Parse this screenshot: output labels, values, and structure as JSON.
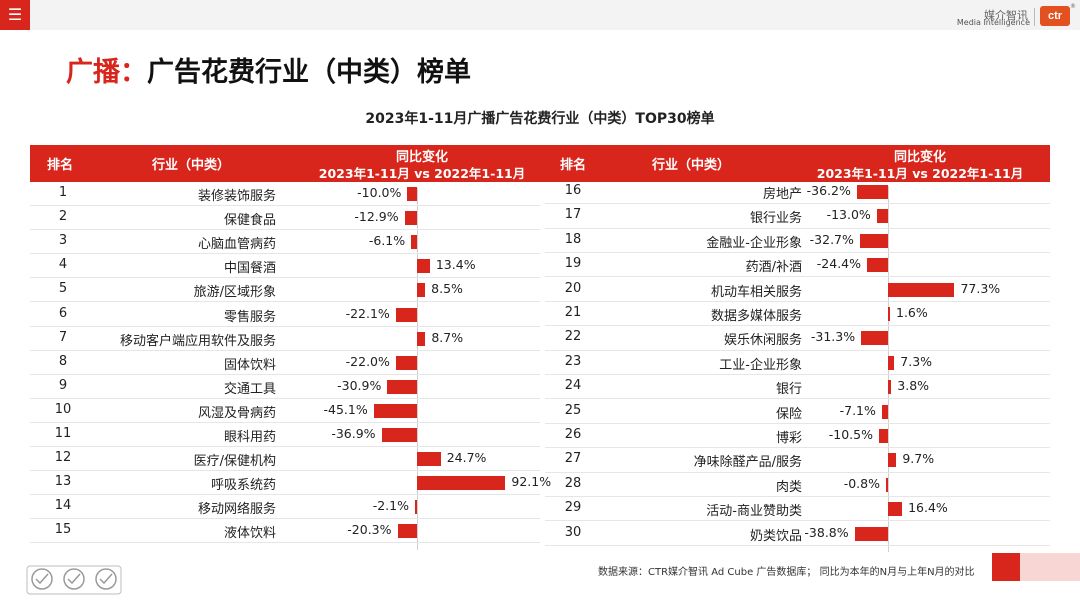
{
  "header": {
    "menu_icon": "menu-icon",
    "logo_cn": "媒介智讯",
    "logo_en": "Media Intelligence",
    "logo_mark": "ctr",
    "logo_reg": "®"
  },
  "slide_title": {
    "prefix": "广播：",
    "main": "广告花费行业（中类）榜单"
  },
  "source_note": "数据来源：CTR媒介智讯 Ad Cube 广告数据库；  同比为本年的N月与上年N月的对比",
  "colors": {
    "accent": "#d9261c",
    "footer_pink": "#f7d6d4"
  },
  "chart_data": {
    "type": "bar",
    "orientation": "horizontal",
    "title": "2023年1-11月广播广告花费行业（中类）TOP30榜单",
    "columns": {
      "rank": "排名",
      "industry": "行业（中类）",
      "change_title": "同比变化",
      "change_sub": "2023年1-11月 vs 2022年1-11月"
    },
    "unit": "%",
    "rows": [
      {
        "rank": "1",
        "industry": "装修装饰服务",
        "value": -10.0,
        "label": "-10.0%"
      },
      {
        "rank": "2",
        "industry": "保健食品",
        "value": -12.9,
        "label": "-12.9%"
      },
      {
        "rank": "3",
        "industry": "心脑血管病药",
        "value": -6.1,
        "label": "-6.1%"
      },
      {
        "rank": "4",
        "industry": "中国餐酒",
        "value": 13.4,
        "label": "13.4%"
      },
      {
        "rank": "5",
        "industry": "旅游/区域形象",
        "value": 8.5,
        "label": "8.5%"
      },
      {
        "rank": "6",
        "industry": "零售服务",
        "value": -22.1,
        "label": "-22.1%"
      },
      {
        "rank": "7",
        "industry": "移动客户端应用软件及服务",
        "value": 8.7,
        "label": "8.7%"
      },
      {
        "rank": "8",
        "industry": "固体饮料",
        "value": -22.0,
        "label": "-22.0%"
      },
      {
        "rank": "9",
        "industry": "交通工具",
        "value": -30.9,
        "label": "-30.9%"
      },
      {
        "rank": "10",
        "industry": "风湿及骨病药",
        "value": -45.1,
        "label": "-45.1%"
      },
      {
        "rank": "11",
        "industry": "眼科用药",
        "value": -36.9,
        "label": "-36.9%"
      },
      {
        "rank": "12",
        "industry": "医疗/保健机构",
        "value": 24.7,
        "label": "24.7%"
      },
      {
        "rank": "13",
        "industry": "呼吸系统药",
        "value": 92.1,
        "label": "92.1%"
      },
      {
        "rank": "14",
        "industry": "移动网络服务",
        "value": -2.1,
        "label": "-2.1%"
      },
      {
        "rank": "15",
        "industry": "液体饮料",
        "value": -20.3,
        "label": "-20.3%"
      },
      {
        "rank": "16",
        "industry": "房地产",
        "value": -36.2,
        "label": "-36.2%"
      },
      {
        "rank": "17",
        "industry": "银行业务",
        "value": -13.0,
        "label": "-13.0%"
      },
      {
        "rank": "18",
        "industry": "金融业-企业形象",
        "value": -32.7,
        "label": "-32.7%"
      },
      {
        "rank": "19",
        "industry": "药酒/补酒",
        "value": -24.4,
        "label": "-24.4%"
      },
      {
        "rank": "20",
        "industry": "机动车相关服务",
        "value": 77.3,
        "label": "77.3%"
      },
      {
        "rank": "21",
        "industry": "数据多媒体服务",
        "value": 1.6,
        "label": "1.6%"
      },
      {
        "rank": "22",
        "industry": "娱乐休闲服务",
        "value": -31.3,
        "label": "-31.3%"
      },
      {
        "rank": "23",
        "industry": "工业-企业形象",
        "value": 7.3,
        "label": "7.3%"
      },
      {
        "rank": "24",
        "industry": "银行",
        "value": 3.8,
        "label": "3.8%"
      },
      {
        "rank": "25",
        "industry": "保险",
        "value": -7.1,
        "label": "-7.1%"
      },
      {
        "rank": "26",
        "industry": "博彩",
        "value": -10.5,
        "label": "-10.5%"
      },
      {
        "rank": "27",
        "industry": "净味除醛产品/服务",
        "value": 9.7,
        "label": "9.7%"
      },
      {
        "rank": "28",
        "industry": "肉类",
        "value": -0.8,
        "label": "-0.8%"
      },
      {
        "rank": "29",
        "industry": "活动-商业赞助类",
        "value": 16.4,
        "label": "16.4%"
      },
      {
        "rank": "30",
        "industry": "奶类饮品",
        "value": -38.8,
        "label": "-38.8%"
      }
    ]
  }
}
